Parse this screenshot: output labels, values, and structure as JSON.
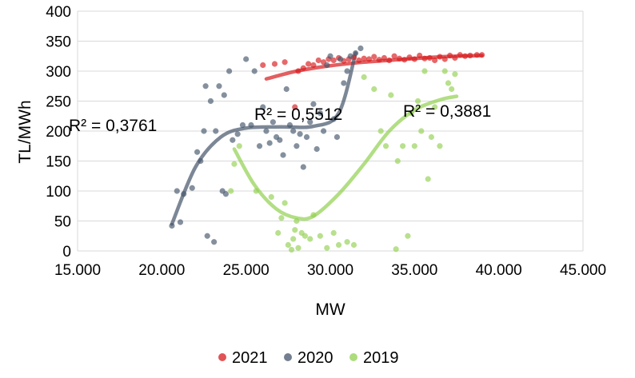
{
  "chart_data": {
    "type": "scatter",
    "title": "",
    "xlabel": "MW",
    "ylabel": "TL/MWh",
    "xlim": [
      15000,
      45000
    ],
    "ylim": [
      0,
      400
    ],
    "x_ticks": [
      15000,
      20000,
      25000,
      30000,
      35000,
      40000,
      45000
    ],
    "x_tick_labels": [
      "15.000",
      "20.000",
      "25.000",
      "30.000",
      "35.000",
      "40.000",
      "45.000"
    ],
    "y_ticks": [
      0,
      50,
      100,
      150,
      200,
      250,
      300,
      350,
      400
    ],
    "y_tick_labels": [
      "0",
      "50",
      "100",
      "150",
      "200",
      "250",
      "300",
      "350",
      "400"
    ],
    "grid": "horizontal",
    "legend_position": "bottom",
    "series": [
      {
        "name": "2021",
        "color": "#d7191c",
        "r_squared_label": "",
        "points": [
          [
            26000,
            310
          ],
          [
            26700,
            312
          ],
          [
            27300,
            315
          ],
          [
            27900,
            240
          ],
          [
            28100,
            300
          ],
          [
            28400,
            305
          ],
          [
            28700,
            312
          ],
          [
            29000,
            310
          ],
          [
            29300,
            318
          ],
          [
            29600,
            315
          ],
          [
            29900,
            320
          ],
          [
            30200,
            318
          ],
          [
            30500,
            322
          ],
          [
            30800,
            317
          ],
          [
            31100,
            320
          ],
          [
            31400,
            323
          ],
          [
            31700,
            318
          ],
          [
            32000,
            321
          ],
          [
            32300,
            320
          ],
          [
            32600,
            324
          ],
          [
            32900,
            319
          ],
          [
            33200,
            322
          ],
          [
            33500,
            318
          ],
          [
            33800,
            325
          ],
          [
            34100,
            321
          ],
          [
            34400,
            319
          ],
          [
            34700,
            323
          ],
          [
            35000,
            320
          ],
          [
            35300,
            326
          ],
          [
            35600,
            321
          ],
          [
            35900,
            322
          ],
          [
            36200,
            318
          ],
          [
            36500,
            324
          ],
          [
            36800,
            320
          ],
          [
            37100,
            326
          ],
          [
            37400,
            322
          ],
          [
            37700,
            327
          ],
          [
            38000,
            325
          ],
          [
            38300,
            326
          ],
          [
            38700,
            327
          ],
          [
            39000,
            327
          ]
        ],
        "trend": [
          [
            26200,
            287
          ],
          [
            28000,
            300
          ],
          [
            30000,
            309
          ],
          [
            32000,
            315
          ],
          [
            34000,
            319
          ],
          [
            36000,
            323
          ],
          [
            37500,
            325
          ],
          [
            39000,
            326
          ]
        ]
      },
      {
        "name": "2020",
        "color": "#44546a",
        "r_squared_label": "R² = 0,3761",
        "points": [
          [
            20600,
            42
          ],
          [
            20900,
            100
          ],
          [
            21100,
            48
          ],
          [
            21300,
            95
          ],
          [
            21800,
            105
          ],
          [
            22100,
            165
          ],
          [
            22300,
            150
          ],
          [
            22500,
            200
          ],
          [
            22600,
            275
          ],
          [
            22700,
            25
          ],
          [
            22900,
            250
          ],
          [
            23100,
            15
          ],
          [
            23200,
            200
          ],
          [
            23400,
            275
          ],
          [
            23600,
            100
          ],
          [
            23700,
            260
          ],
          [
            23800,
            95
          ],
          [
            24000,
            300
          ],
          [
            24200,
            185
          ],
          [
            24500,
            195
          ],
          [
            24800,
            210
          ],
          [
            25000,
            320
          ],
          [
            25300,
            210
          ],
          [
            25500,
            300
          ],
          [
            25800,
            175
          ],
          [
            26000,
            240
          ],
          [
            26200,
            200
          ],
          [
            26400,
            180
          ],
          [
            26600,
            215
          ],
          [
            26800,
            190
          ],
          [
            27000,
            185
          ],
          [
            27200,
            160
          ],
          [
            27400,
            270
          ],
          [
            27600,
            210
          ],
          [
            27800,
            200
          ],
          [
            28000,
            175
          ],
          [
            28200,
            195
          ],
          [
            28400,
            140
          ],
          [
            28600,
            190
          ],
          [
            28800,
            215
          ],
          [
            29000,
            245
          ],
          [
            29200,
            170
          ],
          [
            29400,
            230
          ],
          [
            29600,
            200
          ],
          [
            29800,
            310
          ],
          [
            30000,
            325
          ],
          [
            30200,
            220
          ],
          [
            30400,
            190
          ],
          [
            30600,
            320
          ],
          [
            30800,
            280
          ],
          [
            31000,
            300
          ],
          [
            31200,
            325
          ],
          [
            31500,
            330
          ],
          [
            31800,
            338
          ]
        ],
        "trend": [
          [
            20600,
            45
          ],
          [
            22000,
            140
          ],
          [
            23500,
            190
          ],
          [
            25000,
            205
          ],
          [
            27000,
            207
          ],
          [
            29000,
            208
          ],
          [
            30500,
            230
          ],
          [
            31500,
            330
          ]
        ]
      },
      {
        "name": "2019",
        "color": "#92d050",
        "r_squared_label": "R² = 0,5512",
        "points": [
          [
            24100,
            100
          ],
          [
            24300,
            145
          ],
          [
            24600,
            175
          ],
          [
            25600,
            100
          ],
          [
            26500,
            90
          ],
          [
            26900,
            30
          ],
          [
            27100,
            55
          ],
          [
            27300,
            80
          ],
          [
            27500,
            10
          ],
          [
            27700,
            2
          ],
          [
            27800,
            20
          ],
          [
            27900,
            35
          ],
          [
            28000,
            50
          ],
          [
            28100,
            5
          ],
          [
            28300,
            30
          ],
          [
            28500,
            25
          ],
          [
            28800,
            20
          ],
          [
            29000,
            60
          ],
          [
            29400,
            25
          ],
          [
            29800,
            5
          ],
          [
            30200,
            30
          ],
          [
            30500,
            10
          ],
          [
            31000,
            15
          ],
          [
            31400,
            10
          ],
          [
            32000,
            290
          ],
          [
            32600,
            270
          ],
          [
            33000,
            200
          ],
          [
            33300,
            175
          ],
          [
            33600,
            260
          ],
          [
            33900,
            3
          ],
          [
            34000,
            150
          ],
          [
            34300,
            175
          ],
          [
            34600,
            25
          ],
          [
            34800,
            230
          ],
          [
            35000,
            175
          ],
          [
            35200,
            250
          ],
          [
            35400,
            200
          ],
          [
            35600,
            300
          ],
          [
            35800,
            120
          ],
          [
            36000,
            190
          ],
          [
            36200,
            240
          ],
          [
            36500,
            175
          ],
          [
            36800,
            300
          ],
          [
            37000,
            280
          ],
          [
            37200,
            270
          ],
          [
            37400,
            295
          ]
        ],
        "trend": [
          [
            24300,
            170
          ],
          [
            25500,
            110
          ],
          [
            26800,
            70
          ],
          [
            28000,
            55
          ],
          [
            29000,
            58
          ],
          [
            30500,
            95
          ],
          [
            32000,
            145
          ],
          [
            33500,
            200
          ],
          [
            35000,
            235
          ],
          [
            36500,
            252
          ],
          [
            37500,
            258
          ]
        ]
      }
    ],
    "annotations": [
      "R² = 0,3761",
      "R² = 0,5512",
      "R² = 0,3881"
    ]
  }
}
